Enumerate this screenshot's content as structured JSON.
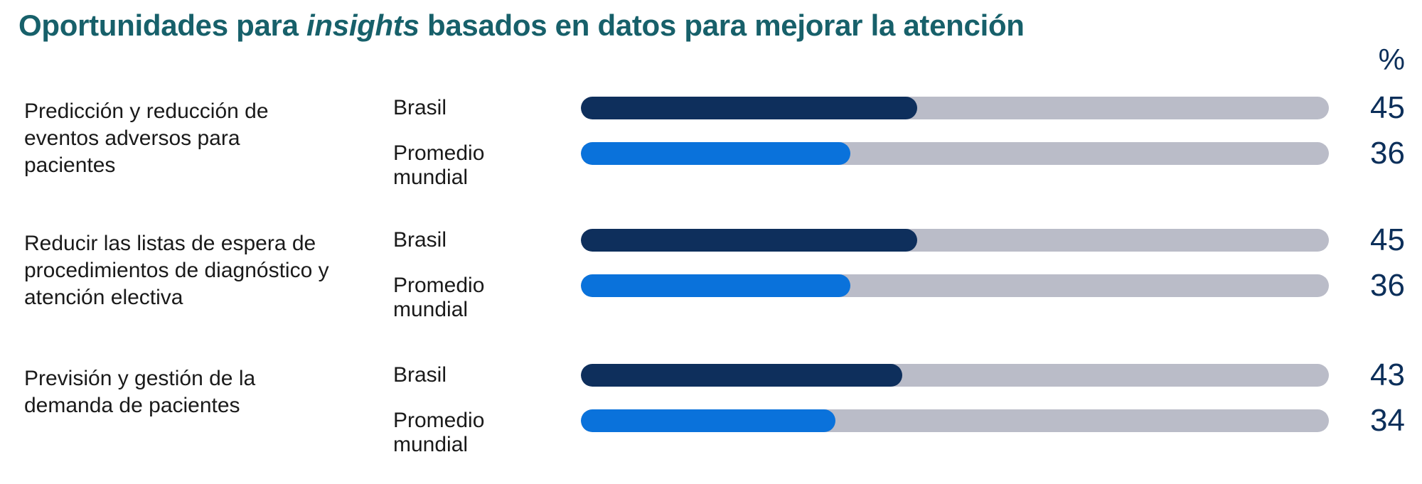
{
  "header": {
    "title_pre": "Oportunidades para ",
    "title_em": "insights",
    "title_post": " basados en datos para mejorar la atención",
    "unit": "%"
  },
  "colors": {
    "title": "#17606a",
    "brasil": "#0e2f5c",
    "mundial": "#0a72db",
    "track": "#babcc8",
    "value": "#0c2f5a"
  },
  "chart_data": {
    "type": "bar",
    "orientation": "horizontal",
    "title": "Oportunidades para insights basados en datos para mejorar la atención",
    "unit": "%",
    "xlim": [
      0,
      100
    ],
    "categories": [
      "Predicción y reducción de eventos adversos para pacientes",
      "Reducir las listas de espera de procedimientos de diagnóstico y atención electiva",
      "Previsión y gestión de la demanda de pacientes"
    ],
    "series": [
      {
        "name": "Brasil",
        "values": [
          45,
          45,
          43
        ]
      },
      {
        "name": "Promedio mundial",
        "values": [
          36,
          36,
          34
        ]
      }
    ],
    "series_labels": [
      {
        "line1": "Brasil",
        "line2": ""
      },
      {
        "line1": "Promedio",
        "line2": "mundial"
      }
    ],
    "category_lines": [
      [
        "Predicción y reducción de",
        "eventos adversos para",
        "pacientes"
      ],
      [
        "Reducir las listas de espera de",
        "procedimientos de diagnóstico y",
        "atención electiva"
      ],
      [
        "Previsión y gestión de la",
        "demanda de pacientes"
      ]
    ]
  }
}
